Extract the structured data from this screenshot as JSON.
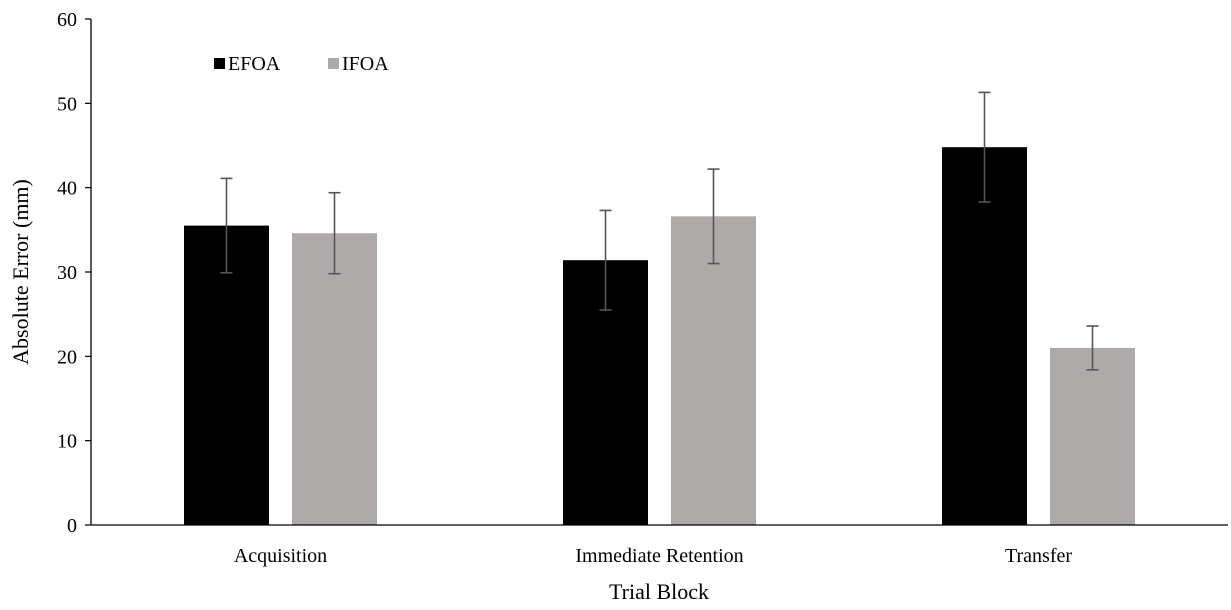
{
  "chart_data": {
    "type": "bar",
    "title": "",
    "xlabel": "Trial Block",
    "ylabel": "Absolute Error (mm)",
    "ylim": [
      0,
      60
    ],
    "yticks": [
      0,
      10,
      20,
      30,
      40,
      50,
      60
    ],
    "categories": [
      "Acquisition",
      "Immediate Retention",
      "Transfer"
    ],
    "grid": false,
    "legend_position": "top-left",
    "series": [
      {
        "name": "EFOA",
        "color": "#000000",
        "values": [
          35.5,
          31.4,
          44.8
        ],
        "error": [
          5.6,
          5.9,
          6.5
        ]
      },
      {
        "name": "IFOA",
        "color": "#aeaaaa",
        "values": [
          34.6,
          36.6,
          21.0
        ],
        "error": [
          4.8,
          5.6,
          2.6
        ]
      }
    ]
  }
}
